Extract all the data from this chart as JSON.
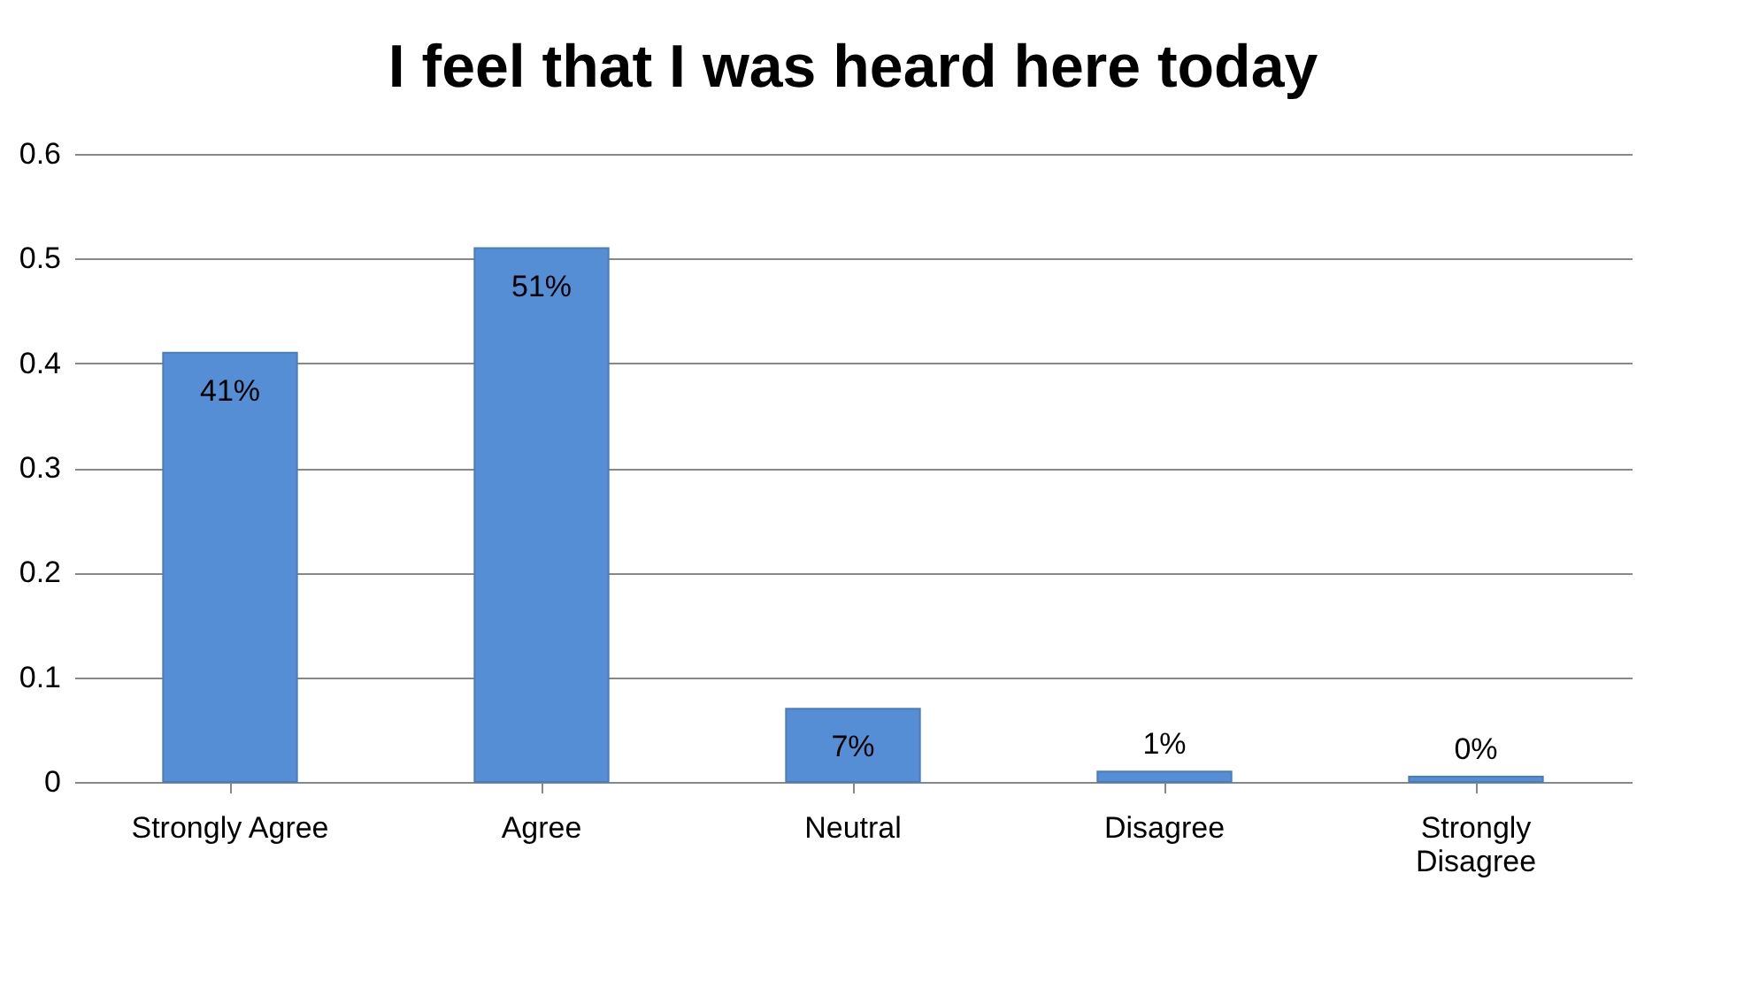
{
  "chart_data": {
    "type": "bar",
    "title": "I feel that I was heard here today",
    "categories": [
      "Strongly Agree",
      "Agree",
      "Neutral",
      "Disagree",
      "Strongly Disagree"
    ],
    "values": [
      0.41,
      0.51,
      0.07,
      0.01,
      0.005
    ],
    "value_labels": [
      "41%",
      "51%",
      "7%",
      "1%",
      "0%"
    ],
    "color": "#558ed5",
    "ylim": [
      0,
      0.6
    ],
    "yticks": [
      0,
      0.1,
      0.2,
      0.3,
      0.4,
      0.5,
      0.6
    ],
    "grid": "y"
  }
}
